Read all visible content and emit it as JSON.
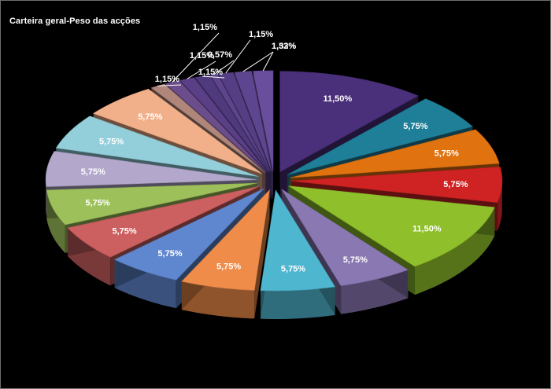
{
  "chart_data": {
    "type": "pie",
    "title": "Carteira geral-Peso das acções",
    "slices": [
      {
        "label": "11,50%",
        "value": 11.5,
        "color": "#4a2f7a"
      },
      {
        "label": "5,75%",
        "value": 5.75,
        "color": "#1f7f99"
      },
      {
        "label": "5,75%",
        "value": 5.75,
        "color": "#e0720f"
      },
      {
        "label": "5,75%",
        "value": 5.75,
        "color": "#cf2323"
      },
      {
        "label": "11,50%",
        "value": 11.5,
        "color": "#8fbf2a"
      },
      {
        "label": "5,75%",
        "value": 5.75,
        "color": "#8a78b3"
      },
      {
        "label": "5,75%",
        "value": 5.75,
        "color": "#4fb6cf"
      },
      {
        "label": "5,75%",
        "value": 5.75,
        "color": "#f08c4a"
      },
      {
        "label": "5,75%",
        "value": 5.75,
        "color": "#5f87cf"
      },
      {
        "label": "5,75%",
        "value": 5.75,
        "color": "#cc5f5f"
      },
      {
        "label": "5,75%",
        "value": 5.75,
        "color": "#9dc05a"
      },
      {
        "label": "5,75%",
        "value": 5.75,
        "color": "#b3a8cc"
      },
      {
        "label": "5,75%",
        "value": 5.75,
        "color": "#93cedb"
      },
      {
        "label": "5,75%",
        "value": 5.75,
        "color": "#f2b08a"
      },
      {
        "label": "1,15%",
        "value": 1.15,
        "color": "#b0857a"
      },
      {
        "label": "1,15%",
        "value": 1.15,
        "color": "#6a4d8a"
      },
      {
        "label": "1,15%",
        "value": 1.15,
        "color": "#5a3f86"
      },
      {
        "label": "1,15%",
        "value": 1.15,
        "color": "#4f3a7e"
      },
      {
        "label": "0,57%",
        "value": 0.57,
        "color": "#5d448c"
      },
      {
        "label": "1,15%",
        "value": 1.15,
        "color": "#563e85"
      },
      {
        "label": "1,32%",
        "value": 1.32,
        "color": "#5e4590"
      },
      {
        "label": "1,53%",
        "value": 1.53,
        "color": "#6a4e9e"
      }
    ]
  }
}
